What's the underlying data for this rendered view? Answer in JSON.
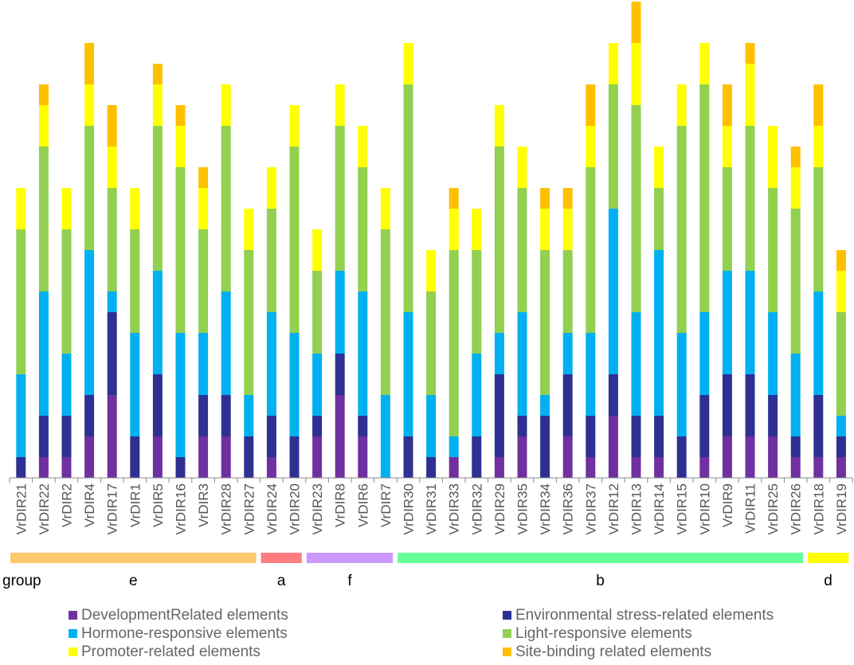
{
  "chart_data": {
    "type": "bar",
    "stacked": true,
    "title": "",
    "xlabel": "",
    "ylabel": "",
    "ylim": [
      0,
      23
    ],
    "grid": false,
    "legend_position": "bottom",
    "categories": [
      "VrDIR21",
      "VrDIR22",
      "VrDIR2",
      "VrDIR4",
      "VrDIR17",
      "VrDIR1",
      "VrDIR5",
      "VrDIR16",
      "VrDIR3",
      "VrDIR28",
      "VrDIR27",
      "VrDIR24",
      "VrDIR20",
      "VrDIR23",
      "VrDIR8",
      "VrDIR6",
      "VrDIR7",
      "VrDIR30",
      "VrDIR31",
      "VrDIR33",
      "VrDIR32",
      "VrDIR29",
      "VrDIR35",
      "VrDIR34",
      "VrDIR36",
      "VrDIR37",
      "VrDIR12",
      "VrDIR13",
      "VrDIR14",
      "VrDIR15",
      "VrDIR10",
      "VrDIR9",
      "VrDIR11",
      "VrDIR25",
      "VrDIR26",
      "VrDIR18",
      "VrDIR19"
    ],
    "series": [
      {
        "name": "DevelopmentRelated elements",
        "color": "#7030a0",
        "values": [
          0,
          1,
          1,
          2,
          4,
          0,
          2,
          0,
          2,
          2,
          0,
          1,
          0,
          2,
          4,
          2,
          0,
          0,
          0,
          1,
          0,
          1,
          2,
          0,
          2,
          1,
          3,
          1,
          1,
          0,
          1,
          2,
          2,
          2,
          1,
          1,
          1
        ]
      },
      {
        "name": "Environmental stress-related elements",
        "color": "#2e3192",
        "values": [
          1,
          2,
          2,
          2,
          4,
          2,
          3,
          1,
          2,
          2,
          2,
          2,
          2,
          1,
          2,
          1,
          0,
          2,
          1,
          0,
          2,
          4,
          1,
          3,
          3,
          2,
          2,
          2,
          2,
          2,
          3,
          3,
          3,
          2,
          1,
          3,
          1
        ]
      },
      {
        "name": "Hormone-responsive elements",
        "color": "#00b0f0",
        "values": [
          4,
          6,
          3,
          7,
          1,
          5,
          5,
          6,
          3,
          5,
          2,
          5,
          5,
          3,
          4,
          6,
          4,
          6,
          3,
          1,
          4,
          2,
          5,
          1,
          2,
          4,
          8,
          5,
          8,
          5,
          4,
          5,
          5,
          4,
          4,
          5,
          1
        ]
      },
      {
        "name": "Light-responsive elements",
        "color": "#92d050",
        "values": [
          7,
          7,
          6,
          6,
          5,
          5,
          7,
          8,
          5,
          8,
          7,
          5,
          9,
          4,
          7,
          6,
          8,
          11,
          5,
          9,
          5,
          9,
          6,
          7,
          4,
          8,
          6,
          10,
          3,
          10,
          11,
          5,
          7,
          6,
          7,
          6,
          5
        ]
      },
      {
        "name": "Promoter-related elements",
        "color": "#ffff00",
        "values": [
          2,
          2,
          2,
          2,
          2,
          2,
          2,
          2,
          2,
          2,
          2,
          2,
          2,
          2,
          2,
          2,
          2,
          2,
          2,
          2,
          2,
          2,
          2,
          2,
          2,
          2,
          2,
          3,
          2,
          2,
          2,
          2,
          3,
          3,
          2,
          2,
          2
        ]
      },
      {
        "name": "Site-binding related elements",
        "color": "#ffc000",
        "values": [
          0,
          1,
          0,
          2,
          2,
          0,
          1,
          1,
          1,
          0,
          0,
          0,
          0,
          0,
          0,
          0,
          0,
          0,
          0,
          1,
          0,
          0,
          0,
          1,
          1,
          2,
          0,
          2,
          0,
          0,
          0,
          2,
          1,
          0,
          1,
          2,
          1
        ]
      }
    ],
    "groups": [
      {
        "label": "e",
        "color": "#fcc96b",
        "members": 11
      },
      {
        "label": "a",
        "color": "#ff7c80",
        "members": 2
      },
      {
        "label": "f",
        "color": "#cc99ff",
        "members": 4
      },
      {
        "label": "b",
        "color": "#66ff99",
        "members": 18
      },
      {
        "label": "d",
        "color": "#ffff00",
        "members": 2
      }
    ],
    "group_axis_label": "group"
  }
}
